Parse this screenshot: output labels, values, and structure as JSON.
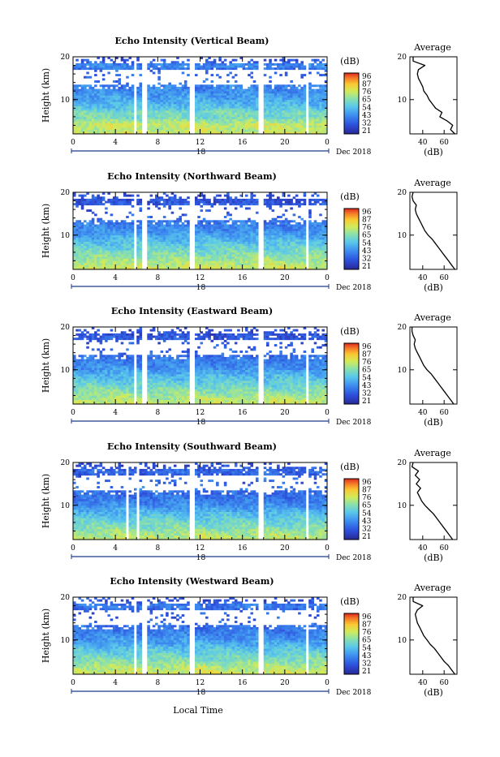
{
  "figure": {
    "xlabel": "Local Time",
    "colors": {
      "axis": "#000000",
      "date_bar": "#1a3a8a",
      "panel_bg": "#ffffff"
    }
  },
  "chart_data": [
    {
      "type": "heatmap",
      "title": "Echo Intensity (Vertical Beam)",
      "xlabel": "",
      "ylabel": "Height (km)",
      "x_ticks": [
        "0",
        "4",
        "8",
        "12",
        "16",
        "20",
        "0"
      ],
      "y_ticks": [
        "10",
        "20"
      ],
      "xlim": [
        0,
        24
      ],
      "ylim": [
        2,
        20
      ],
      "date_tick": "18",
      "date_label": "Dec 2018",
      "colorbar": {
        "unit": "(dB)",
        "ticks": [
          "96",
          "87",
          "76",
          "65",
          "54",
          "43",
          "32",
          "21"
        ],
        "range": [
          21,
          96
        ]
      },
      "gaps_hours": [
        [
          5.8,
          6.1
        ],
        [
          6.5,
          7.0
        ],
        [
          11.0,
          11.4
        ],
        [
          17.6,
          17.9
        ],
        [
          21.9,
          22.2
        ]
      ],
      "average_profile": {
        "title": "Average",
        "xlabel": "(dB)",
        "x_ticks": [
          "40",
          "60"
        ],
        "y_ticks": [
          "10",
          "20"
        ],
        "xlim": [
          28,
          72
        ],
        "ylim": [
          2,
          20
        ],
        "heights": [
          2,
          3,
          4,
          5,
          6,
          7,
          8,
          9,
          10,
          11,
          12,
          13,
          14,
          15,
          16,
          17,
          18,
          19,
          20
        ],
        "values": [
          70,
          66,
          68,
          63,
          56,
          58,
          52,
          49,
          46,
          44,
          41,
          40,
          38,
          36,
          35,
          36,
          42,
          31,
          31
        ]
      }
    },
    {
      "type": "heatmap",
      "title": "Echo Intensity (Northward Beam)",
      "xlabel": "",
      "ylabel": "Height (km)",
      "x_ticks": [
        "0",
        "4",
        "8",
        "12",
        "16",
        "20",
        "0"
      ],
      "y_ticks": [
        "10",
        "20"
      ],
      "xlim": [
        0,
        24
      ],
      "ylim": [
        2,
        20
      ],
      "date_tick": "18",
      "date_label": "Dec 2018",
      "colorbar": {
        "unit": "(dB)",
        "ticks": [
          "96",
          "87",
          "76",
          "65",
          "54",
          "43",
          "32",
          "21"
        ],
        "range": [
          21,
          96
        ]
      },
      "gaps_hours": [
        [
          5.8,
          6.1
        ],
        [
          6.5,
          7.0
        ],
        [
          11.0,
          11.4
        ],
        [
          17.6,
          17.9
        ],
        [
          21.9,
          22.2
        ]
      ],
      "average_profile": {
        "title": "Average",
        "xlabel": "(dB)",
        "x_ticks": [
          "40",
          "60"
        ],
        "y_ticks": [
          "10",
          "20"
        ],
        "xlim": [
          28,
          72
        ],
        "ylim": [
          2,
          20
        ],
        "heights": [
          2,
          3,
          4,
          5,
          6,
          7,
          8,
          9,
          10,
          11,
          12,
          13,
          14,
          15,
          16,
          17,
          18,
          19,
          20
        ],
        "values": [
          70,
          67,
          64,
          61,
          58,
          55,
          52,
          49,
          45,
          42,
          40,
          38,
          36,
          34,
          33,
          34,
          31,
          30,
          31
        ]
      }
    },
    {
      "type": "heatmap",
      "title": "Echo Intensity (Eastward Beam)",
      "xlabel": "",
      "ylabel": "Height (km)",
      "x_ticks": [
        "0",
        "4",
        "8",
        "12",
        "16",
        "20",
        "0"
      ],
      "y_ticks": [
        "10",
        "20"
      ],
      "xlim": [
        0,
        24
      ],
      "ylim": [
        2,
        20
      ],
      "date_tick": "18",
      "date_label": "Dec 2018",
      "colorbar": {
        "unit": "(dB)",
        "ticks": [
          "96",
          "87",
          "76",
          "65",
          "54",
          "43",
          "32",
          "21"
        ],
        "range": [
          21,
          96
        ]
      },
      "gaps_hours": [
        [
          5.8,
          6.1
        ],
        [
          6.5,
          7.0
        ],
        [
          11.0,
          11.4
        ],
        [
          17.6,
          17.9
        ],
        [
          21.9,
          22.2
        ]
      ],
      "average_profile": {
        "title": "Average",
        "xlabel": "(dB)",
        "x_ticks": [
          "40",
          "60"
        ],
        "y_ticks": [
          "10",
          "20"
        ],
        "xlim": [
          28,
          72
        ],
        "ylim": [
          2,
          20
        ],
        "heights": [
          2,
          3,
          4,
          5,
          6,
          7,
          8,
          9,
          10,
          11,
          12,
          13,
          14,
          15,
          16,
          17,
          18,
          19,
          20
        ],
        "values": [
          69,
          66,
          63,
          60,
          57,
          54,
          51,
          48,
          44,
          41,
          39,
          37,
          35,
          33,
          32,
          33,
          31,
          30,
          30
        ]
      }
    },
    {
      "type": "heatmap",
      "title": "Echo Intensity (Southward Beam)",
      "xlabel": "",
      "ylabel": "Height (km)",
      "x_ticks": [
        "0",
        "4",
        "8",
        "12",
        "16",
        "20",
        "0"
      ],
      "y_ticks": [
        "10",
        "20"
      ],
      "xlim": [
        0,
        24
      ],
      "ylim": [
        2,
        20
      ],
      "date_tick": "18",
      "date_label": "Dec 2018",
      "colorbar": {
        "unit": "(dB)",
        "ticks": [
          "96",
          "87",
          "76",
          "65",
          "54",
          "43",
          "32",
          "21"
        ],
        "range": [
          21,
          96
        ]
      },
      "gaps_hours": [
        [
          5.0,
          5.3
        ],
        [
          6.0,
          6.3
        ],
        [
          11.0,
          11.4
        ],
        [
          17.6,
          17.9
        ],
        [
          21.9,
          22.2
        ]
      ],
      "average_profile": {
        "title": "Average",
        "xlabel": "(dB)",
        "x_ticks": [
          "40",
          "60"
        ],
        "y_ticks": [
          "10",
          "20"
        ],
        "xlim": [
          28,
          72
        ],
        "ylim": [
          2,
          20
        ],
        "heights": [
          2,
          3,
          4,
          5,
          6,
          7,
          8,
          9,
          10,
          11,
          12,
          13,
          14,
          15,
          16,
          17,
          18,
          19,
          20
        ],
        "values": [
          68,
          65,
          62,
          59,
          56,
          53,
          50,
          46,
          42,
          39,
          37,
          35,
          38,
          34,
          37,
          33,
          36,
          30,
          31
        ]
      }
    },
    {
      "type": "heatmap",
      "title": "Echo Intensity (Westward Beam)",
      "xlabel": "",
      "ylabel": "Height (km)",
      "x_ticks": [
        "0",
        "4",
        "8",
        "12",
        "16",
        "20",
        "0"
      ],
      "y_ticks": [
        "10",
        "20"
      ],
      "xlim": [
        0,
        24
      ],
      "ylim": [
        2,
        20
      ],
      "date_tick": "18",
      "date_label": "Dec 2018",
      "colorbar": {
        "unit": "(dB)",
        "ticks": [
          "96",
          "87",
          "76",
          "65",
          "54",
          "43",
          "32",
          "21"
        ],
        "range": [
          21,
          96
        ]
      },
      "gaps_hours": [
        [
          5.8,
          6.1
        ],
        [
          6.5,
          7.0
        ],
        [
          11.0,
          11.4
        ],
        [
          17.6,
          17.9
        ],
        [
          21.9,
          22.2
        ]
      ],
      "average_profile": {
        "title": "Average",
        "xlabel": "(dB)",
        "x_ticks": [
          "40",
          "60"
        ],
        "y_ticks": [
          "10",
          "20"
        ],
        "xlim": [
          28,
          72
        ],
        "ylim": [
          2,
          20
        ],
        "heights": [
          2,
          3,
          4,
          5,
          6,
          7,
          8,
          9,
          10,
          11,
          12,
          13,
          14,
          15,
          16,
          17,
          18,
          19,
          20
        ],
        "values": [
          70,
          67,
          64,
          60,
          57,
          54,
          51,
          47,
          44,
          41,
          39,
          37,
          35,
          34,
          33,
          35,
          40,
          31,
          31
        ]
      }
    }
  ]
}
